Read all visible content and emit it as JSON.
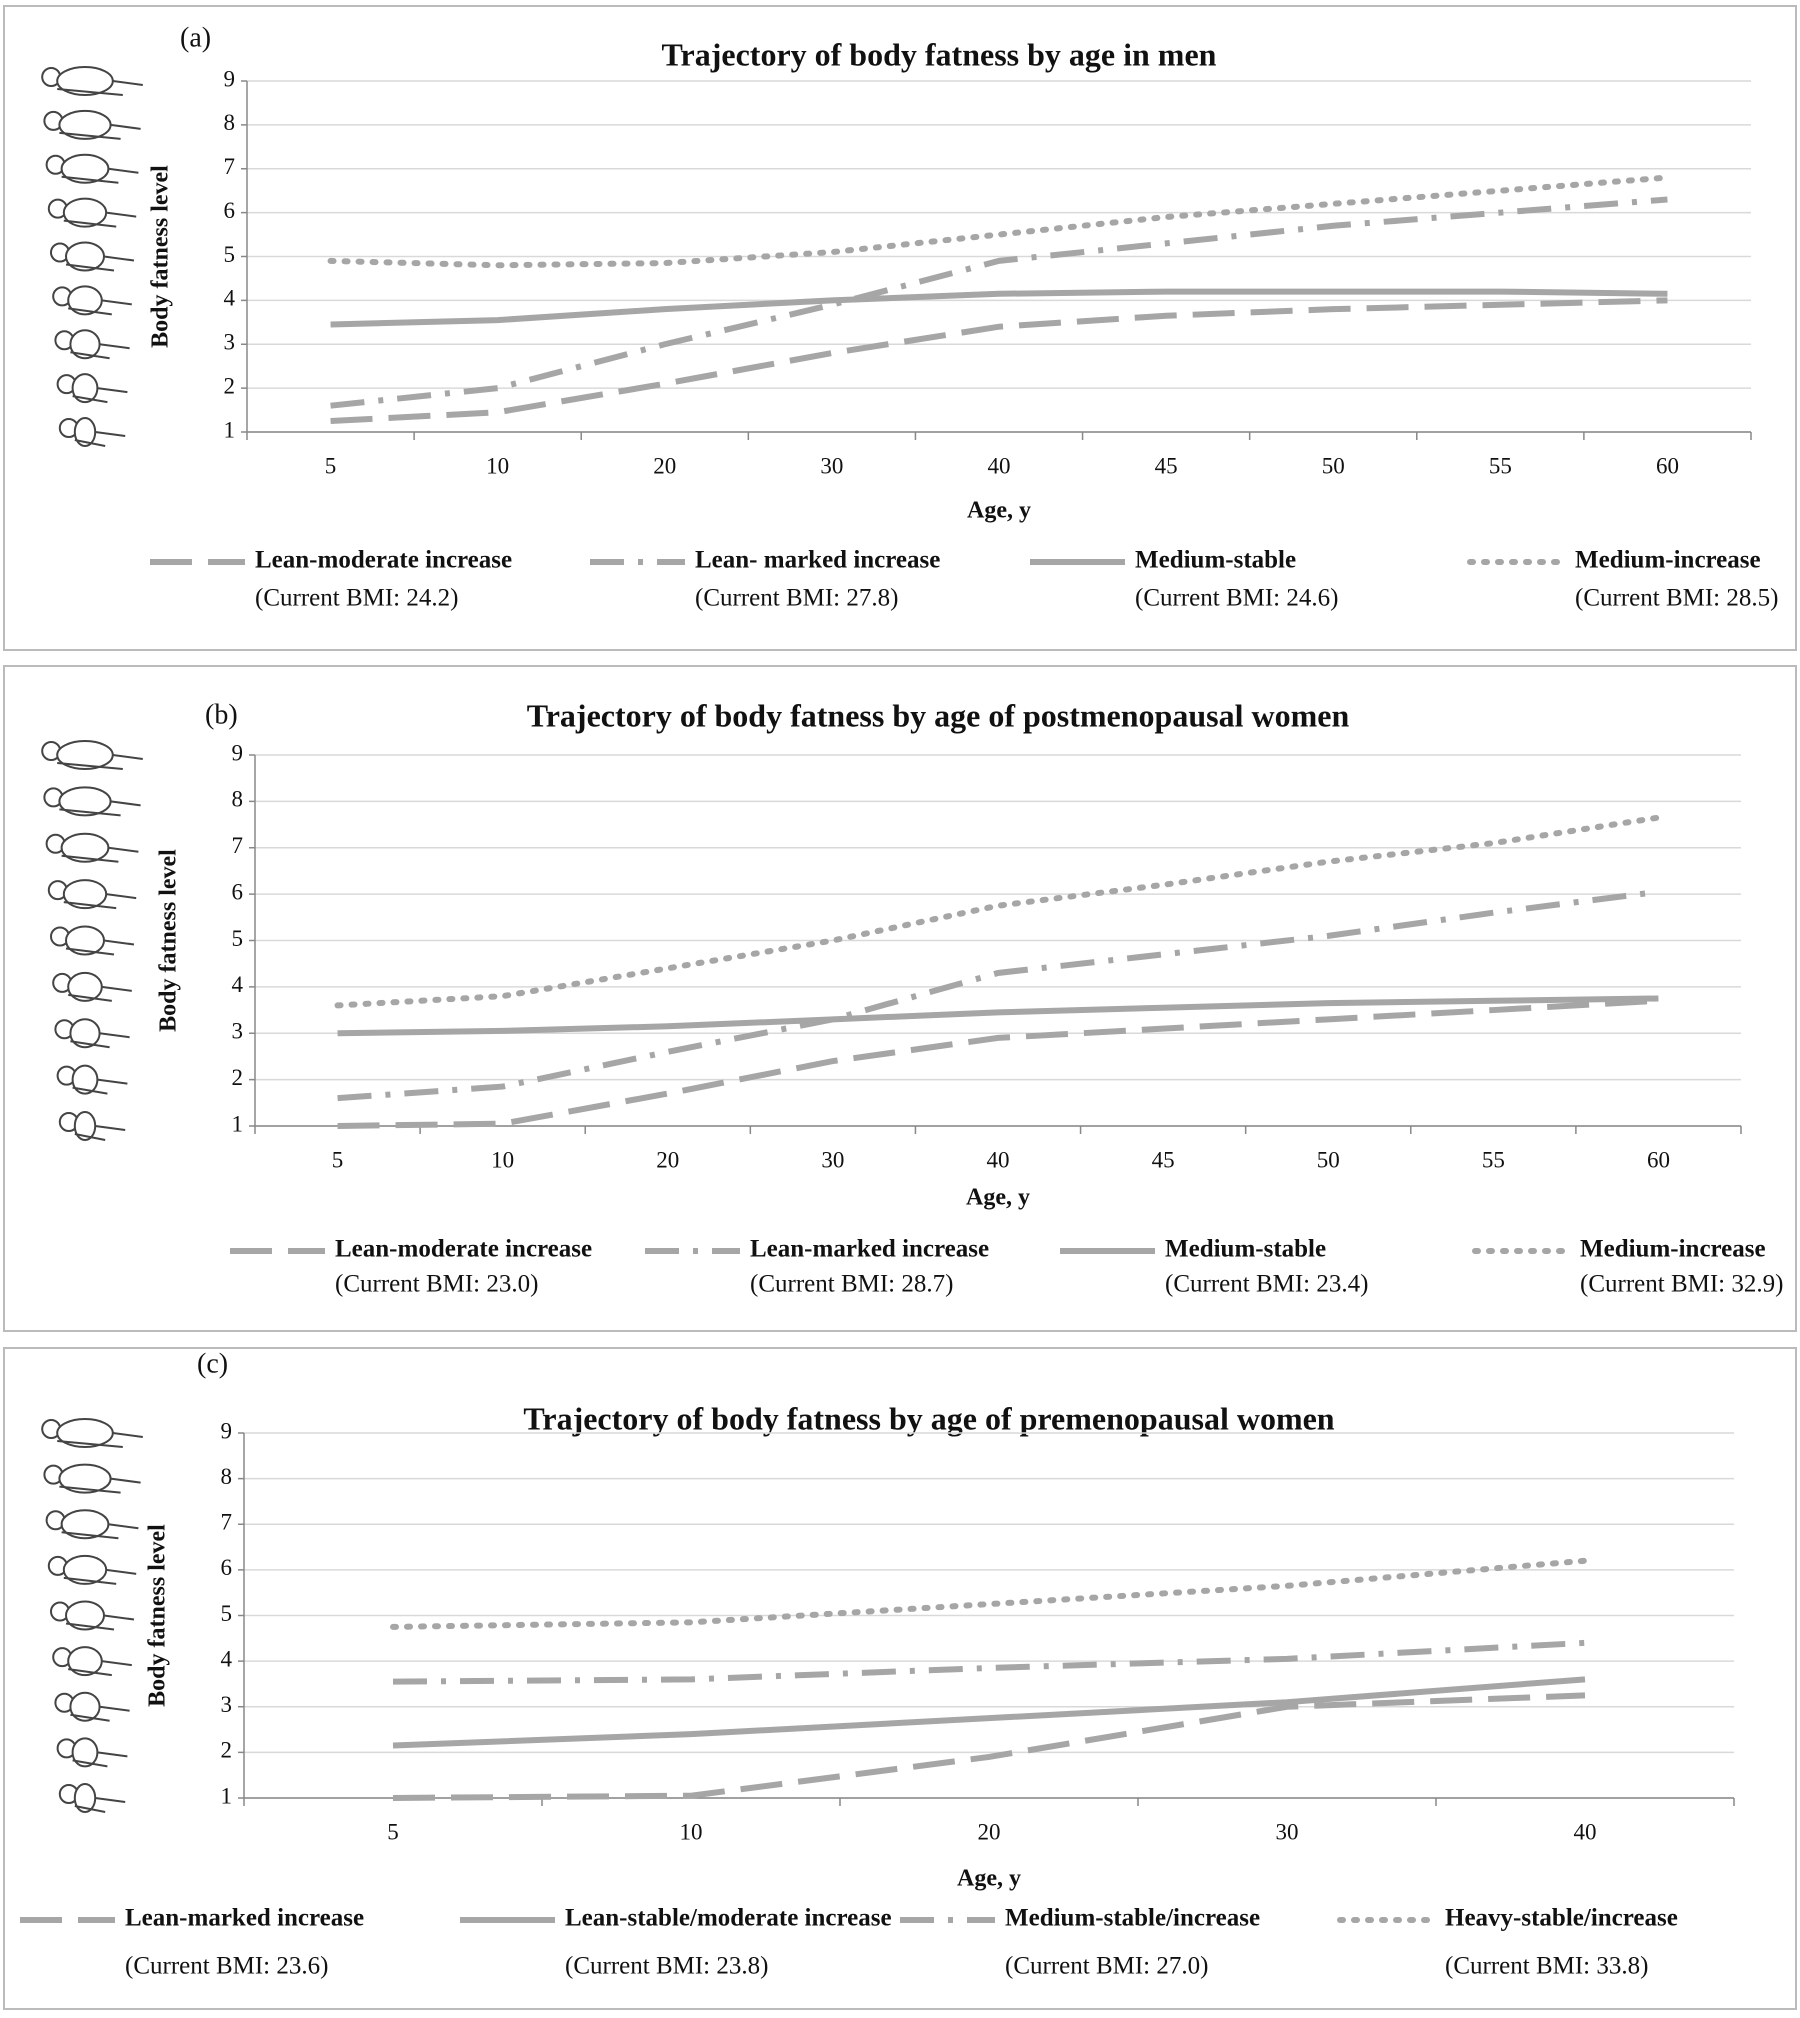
{
  "chart_data": [
    {
      "type": "line",
      "panel_label": "(a)",
      "title": "Trajectory of body fatness by age in men",
      "x_label": "Age, y",
      "y_label": "Body fatness level",
      "categories": [
        "5",
        "10",
        "20",
        "30",
        "40",
        "45",
        "50",
        "55",
        "60"
      ],
      "ylim": [
        1,
        9
      ],
      "yticks": [
        1,
        2,
        3,
        4,
        5,
        6,
        7,
        8,
        9
      ],
      "grid": true,
      "series": [
        {
          "name": "Lean-moderate increase",
          "note": "(Current BMI: 24.2)",
          "color": "#a6a6a6",
          "style": "long-dash",
          "values": [
            1.25,
            1.45,
            2.1,
            2.8,
            3.4,
            3.65,
            3.8,
            3.9,
            4.0
          ]
        },
        {
          "name": "Lean- marked increase",
          "note": "(Current BMI: 27.8)",
          "color": "#a6a6a6",
          "style": "dash-dot",
          "values": [
            1.6,
            2.0,
            3.0,
            3.9,
            4.9,
            5.3,
            5.7,
            6.0,
            6.3
          ]
        },
        {
          "name": "Medium-stable",
          "note": "(Current BMI: 24.6)",
          "color": "#a6a6a6",
          "style": "solid",
          "values": [
            3.45,
            3.55,
            3.8,
            4.0,
            4.15,
            4.2,
            4.2,
            4.2,
            4.15
          ]
        },
        {
          "name": "Medium-increase",
          "note": "(Current BMI: 28.5)",
          "color": "#a6a6a6",
          "style": "dotted",
          "values": [
            4.9,
            4.8,
            4.85,
            5.1,
            5.5,
            5.9,
            6.2,
            6.5,
            6.8
          ]
        }
      ]
    },
    {
      "type": "line",
      "panel_label": "(b)",
      "title": "Trajectory of body fatness by age of postmenopausal women",
      "x_label": "Age, y",
      "y_label": "Body fatness level",
      "categories": [
        "5",
        "10",
        "20",
        "30",
        "40",
        "45",
        "50",
        "55",
        "60"
      ],
      "ylim": [
        1,
        9
      ],
      "yticks": [
        1,
        2,
        3,
        4,
        5,
        6,
        7,
        8,
        9
      ],
      "grid": true,
      "series": [
        {
          "name": "Lean-moderate increase",
          "note": "(Current BMI: 23.0)",
          "color": "#a6a6a6",
          "style": "long-dash",
          "values": [
            1.0,
            1.05,
            1.7,
            2.4,
            2.9,
            3.1,
            3.3,
            3.5,
            3.7
          ]
        },
        {
          "name": "Lean-marked increase",
          "note": "(Current BMI: 28.7)",
          "color": "#a6a6a6",
          "style": "dash-dot",
          "values": [
            1.6,
            1.85,
            2.6,
            3.3,
            4.3,
            4.7,
            5.1,
            5.6,
            6.05
          ]
        },
        {
          "name": "Medium-stable",
          "note": "(Current BMI: 23.4)",
          "color": "#a6a6a6",
          "style": "solid",
          "values": [
            3.0,
            3.05,
            3.15,
            3.3,
            3.45,
            3.55,
            3.65,
            3.7,
            3.75
          ]
        },
        {
          "name": "Medium-increase",
          "note": "(Current BMI: 32.9)",
          "color": "#a6a6a6",
          "style": "dotted",
          "values": [
            3.6,
            3.8,
            4.4,
            5.0,
            5.75,
            6.2,
            6.7,
            7.1,
            7.65
          ]
        }
      ]
    },
    {
      "type": "line",
      "panel_label": "(c)",
      "title": "Trajectory of body fatness by age of premenopausal women",
      "x_label": "Age, y",
      "y_label": "Body fatness level",
      "categories": [
        "5",
        "10",
        "20",
        "30",
        "40"
      ],
      "ylim": [
        1,
        9
      ],
      "yticks": [
        1,
        2,
        3,
        4,
        5,
        6,
        7,
        8,
        9
      ],
      "grid": true,
      "series": [
        {
          "name": "Lean-marked increase",
          "note": "(Current BMI: 23.6)",
          "color": "#a6a6a6",
          "style": "long-dash",
          "values": [
            1.0,
            1.05,
            1.9,
            3.0,
            3.25
          ]
        },
        {
          "name": "Lean-stable/moderate increase",
          "note": "(Current BMI: 23.8)",
          "color": "#a6a6a6",
          "style": "solid",
          "values": [
            2.15,
            2.4,
            2.75,
            3.1,
            3.6
          ]
        },
        {
          "name": "Medium-stable/increase",
          "note": "(Current BMI: 27.0)",
          "color": "#a6a6a6",
          "style": "dash-dot",
          "values": [
            3.55,
            3.6,
            3.85,
            4.05,
            4.4
          ]
        },
        {
          "name": "Heavy-stable/increase",
          "note": "(Current BMI: 33.8)",
          "color": "#a6a6a6",
          "style": "dotted",
          "values": [
            4.75,
            4.85,
            5.25,
            5.65,
            6.2
          ]
        }
      ]
    }
  ]
}
